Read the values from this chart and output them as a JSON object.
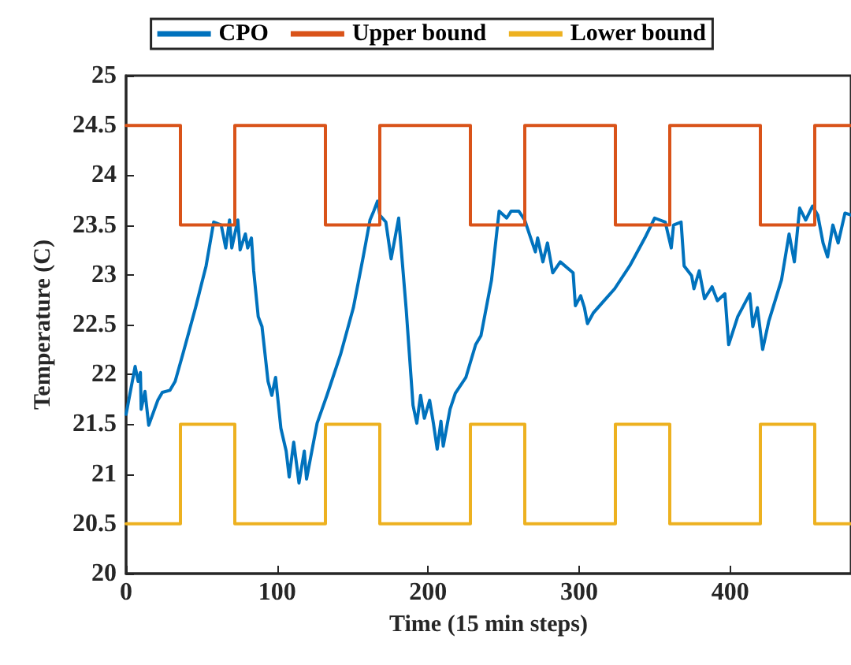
{
  "chart_data": {
    "type": "line",
    "xlabel": "Time (15 min steps)",
    "ylabel": "Temperature (C)",
    "xlim": [
      0,
      480
    ],
    "xticks": [
      0,
      100,
      200,
      300,
      400
    ],
    "ylim": [
      20,
      25
    ],
    "yticks": [
      20,
      20.5,
      21,
      21.5,
      22,
      22.5,
      23,
      23.5,
      24,
      24.5,
      25
    ],
    "grid": false,
    "legend": "top",
    "marker": "none",
    "line_style": "solid",
    "series": [
      {
        "name": "CPO",
        "color": "#0072bd",
        "x": [
          0,
          6,
          8,
          9.5,
          10,
          12.5,
          15,
          21,
          24,
          29,
          32.5,
          37.5,
          46,
          53,
          58,
          63,
          66,
          68.5,
          70,
          74,
          75.5,
          79,
          80.5,
          83,
          84.5,
          87.5,
          90,
          94,
          96.5,
          99,
          102.5,
          106,
          108,
          111,
          114.5,
          118,
          119.5,
          126.5,
          133,
          142,
          150.5,
          157,
          161.5,
          164,
          166.5,
          168,
          172,
          174,
          175.5,
          180.5,
          185.5,
          190,
          192.5,
          195,
          197.5,
          201,
          203.5,
          206,
          208.5,
          210,
          214.5,
          218,
          225,
          231.5,
          235,
          242,
          247,
          252,
          255,
          260,
          264,
          267,
          271,
          272.5,
          276,
          279,
          282.5,
          287.5,
          296,
          297.5,
          301,
          303.5,
          305.5,
          309.5,
          323.5,
          333.5,
          343.5,
          350,
          357,
          361,
          362.5,
          367.5,
          369.5,
          374.5,
          376,
          379.5,
          383,
          388,
          391.5,
          396.5,
          399,
          405,
          413,
          415,
          418,
          421.5,
          425.5,
          434,
          439,
          442.5,
          446,
          450,
          454.5,
          458,
          461.5,
          464.5,
          468,
          471.5,
          476,
          480
        ],
        "values": [
          21.6,
          22.08,
          21.93,
          22.02,
          21.65,
          21.83,
          21.49,
          21.74,
          21.82,
          21.84,
          21.93,
          22.2,
          22.67,
          23.09,
          23.53,
          23.5,
          23.27,
          23.55,
          23.27,
          23.55,
          23.25,
          23.41,
          23.27,
          23.37,
          23.04,
          22.58,
          22.48,
          21.93,
          21.79,
          21.97,
          21.46,
          21.23,
          20.97,
          21.32,
          20.91,
          21.23,
          20.95,
          21.51,
          21.79,
          22.2,
          22.67,
          23.18,
          23.55,
          23.64,
          23.74,
          23.6,
          23.53,
          23.32,
          23.16,
          23.57,
          22.65,
          21.69,
          21.51,
          21.79,
          21.56,
          21.74,
          21.51,
          21.25,
          21.53,
          21.28,
          21.65,
          21.81,
          21.97,
          22.3,
          22.39,
          22.95,
          23.64,
          23.57,
          23.64,
          23.64,
          23.55,
          23.41,
          23.23,
          23.37,
          23.13,
          23.32,
          23.02,
          23.13,
          23.02,
          22.69,
          22.79,
          22.67,
          22.51,
          22.62,
          22.86,
          23.09,
          23.37,
          23.57,
          23.53,
          23.27,
          23.5,
          23.53,
          23.09,
          22.99,
          22.86,
          23.04,
          22.76,
          22.88,
          22.74,
          22.81,
          22.3,
          22.58,
          22.81,
          22.48,
          22.67,
          22.25,
          22.53,
          22.95,
          23.41,
          23.13,
          23.67,
          23.55,
          23.69,
          23.6,
          23.32,
          23.18,
          23.5,
          23.32,
          23.62,
          23.6
        ]
      },
      {
        "name": "Upper bound",
        "color": "#d95319",
        "type": "step",
        "x": [
          0,
          36,
          72,
          132,
          168,
          228,
          264,
          324,
          360,
          420,
          456,
          480
        ],
        "values": [
          24.5,
          23.5,
          24.5,
          23.5,
          24.5,
          23.5,
          24.5,
          23.5,
          24.5,
          23.5,
          24.5,
          24.5
        ]
      },
      {
        "name": "Lower bound",
        "color": "#edb120",
        "type": "step",
        "x": [
          0,
          36,
          72,
          132,
          168,
          228,
          264,
          324,
          360,
          420,
          456,
          480
        ],
        "values": [
          20.5,
          21.5,
          20.5,
          21.5,
          20.5,
          21.5,
          20.5,
          21.5,
          20.5,
          21.5,
          20.5,
          20.5
        ]
      }
    ]
  }
}
